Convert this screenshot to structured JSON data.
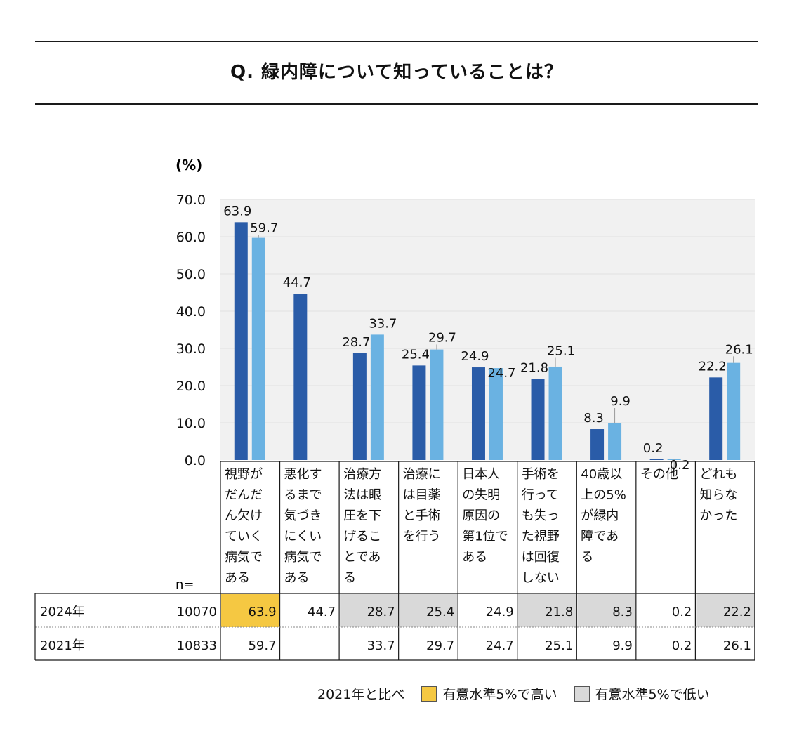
{
  "title": "Q. 緑内障について知っていることは？",
  "chart_data": {
    "type": "bar",
    "ylabel": "(%)",
    "ylim": [
      0,
      70
    ],
    "yticks": [
      "0.0",
      "10.0",
      "20.0",
      "30.0",
      "40.0",
      "50.0",
      "60.0",
      "70.0"
    ],
    "grid": true,
    "categories": [
      "視野がだんだん欠けていく病気である",
      "悪化するまで気づきにくい病気である",
      "治療方法は眼圧を下げることである",
      "治療には目薬と手術を行う",
      "日本人の失明原因の第1位である",
      "手術を行っても失った視野は回復しない",
      "40歳以上の5%が緑内障である",
      "その他",
      "どれも知らなかった"
    ],
    "category_lines": [
      [
        "視野が",
        "だんだ",
        "ん欠け",
        "ていく",
        "病気で",
        "ある"
      ],
      [
        "悪化す",
        "るまで",
        "気づき",
        "にくい",
        "病気で",
        "ある"
      ],
      [
        "治療方",
        "法は眼",
        "圧を下",
        "げるこ",
        "とであ",
        "る"
      ],
      [
        "治療に",
        "は目薬",
        "と手術",
        "を行う"
      ],
      [
        "日本人",
        "の失明",
        "原因の",
        "第1位で",
        "ある"
      ],
      [
        "手術を",
        "行って",
        "も失っ",
        "た視野",
        "は回復",
        "しない"
      ],
      [
        "40歳以",
        "上の5%",
        "が緑内",
        "障であ",
        "る"
      ],
      [
        "その他"
      ],
      [
        "どれも",
        "知らな",
        "かった"
      ]
    ],
    "series": [
      {
        "name": "2024年",
        "n": "10070",
        "color": "#2a5ca8",
        "values": [
          63.9,
          44.7,
          28.7,
          25.4,
          24.9,
          21.8,
          8.3,
          0.2,
          22.2
        ],
        "labels": [
          "63.9",
          "44.7",
          "28.7",
          "25.4",
          "24.9",
          "21.8",
          "8.3",
          "0.2",
          "22.2"
        ],
        "significance": [
          "high",
          "none",
          "low",
          "low",
          "none",
          "low",
          "low",
          "none",
          "low"
        ]
      },
      {
        "name": "2021年",
        "n": "10833",
        "color": "#6ab2e2",
        "values": [
          59.7,
          null,
          33.7,
          29.7,
          24.7,
          25.1,
          9.9,
          0.2,
          26.1
        ],
        "labels": [
          "59.7",
          "",
          "33.7",
          "29.7",
          "24.7",
          "25.1",
          "9.9",
          "0.2",
          "26.1"
        ]
      }
    ]
  },
  "table": {
    "n_label": "n="
  },
  "legend": {
    "intro": "2021年と比べ",
    "high_label": "有意水準5%で高い",
    "low_label": "有意水準5%で低い",
    "high_color": "#f5c842",
    "low_color": "#d9d9d9"
  }
}
